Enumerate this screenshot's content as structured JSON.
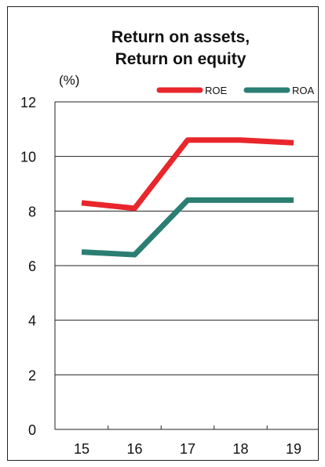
{
  "chart_data": {
    "type": "line",
    "title": [
      "Return on assets,",
      "Return on equity"
    ],
    "unit_label": "(%)",
    "categories": [
      "15",
      "16",
      "17",
      "18",
      "19"
    ],
    "ylim": [
      0,
      12
    ],
    "yticks": [
      0,
      2,
      4,
      6,
      8,
      10,
      12
    ],
    "grid": true,
    "legend_position": "top-right",
    "series": [
      {
        "name": "ROE",
        "color": "#e8262b",
        "values": [
          8.3,
          8.1,
          10.6,
          10.6,
          10.5
        ]
      },
      {
        "name": "ROA",
        "color": "#2a7e72",
        "values": [
          6.5,
          6.4,
          8.4,
          8.4,
          8.4
        ]
      }
    ]
  }
}
